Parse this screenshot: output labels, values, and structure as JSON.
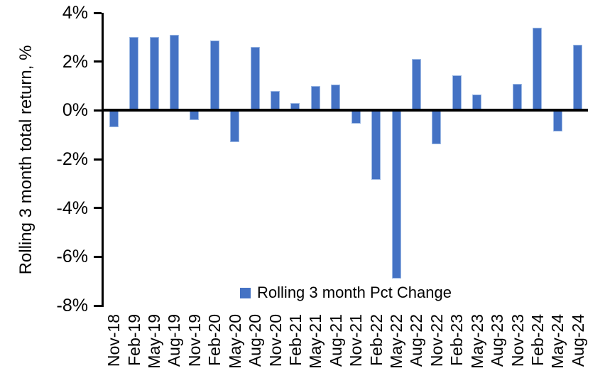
{
  "chart_data": {
    "type": "bar",
    "title": "",
    "xlabel": "",
    "ylabel": "Rolling 3 month total return, %",
    "categories": [
      "Nov-18",
      "Feb-19",
      "May-19",
      "Aug-19",
      "Nov-19",
      "Feb-20",
      "May-20",
      "Aug-20",
      "Nov-20",
      "Feb-21",
      "May-21",
      "Aug-21",
      "Nov-21",
      "Feb-22",
      "May-22",
      "Aug-22",
      "Nov-22",
      "Feb-23",
      "May-23",
      "Aug-23",
      "Nov-23",
      "Feb-24",
      "May-24",
      "Aug-24"
    ],
    "series": [
      {
        "name": "Rolling 3 month Pct Change",
        "values": [
          -0.7,
          3.0,
          3.0,
          3.1,
          -0.4,
          2.85,
          -1.3,
          2.6,
          0.8,
          0.3,
          1.0,
          1.05,
          -0.55,
          -2.85,
          -6.9,
          2.1,
          -1.4,
          1.45,
          0.65,
          0,
          1.1,
          3.4,
          -0.85,
          2.7
        ]
      }
    ],
    "ylim": [
      -8,
      4
    ],
    "ytick_values": [
      4,
      2,
      0,
      -2,
      -4,
      -6,
      -8
    ],
    "ytick_labels": [
      "4%",
      "2%",
      "0%",
      "-2%",
      "-4%",
      "-6%",
      "-8%"
    ],
    "grid": false,
    "legend_position": "bottom-center",
    "colors": {
      "bar_fill": "#4472C4",
      "bar_edge": "#9DB9E4",
      "axis": "#000000",
      "text": "#000000",
      "background": "#FFFFFF"
    }
  }
}
